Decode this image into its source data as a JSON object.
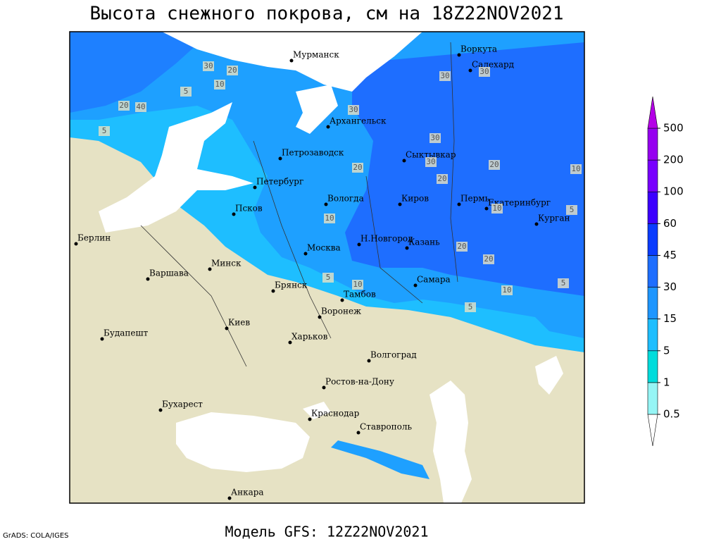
{
  "header": {
    "title": "Высота снежного покрова, см на 18Z22NOV2021"
  },
  "footer": {
    "model": "Модель GFS: 12Z22NOV2021",
    "credit": "GrADS: COLA/IGES"
  },
  "map": {
    "cities": [
      "Мурманск",
      "Воркута",
      "Салехард",
      "Архангельск",
      "Петрозаводск",
      "Сыктывкар",
      "Петербург",
      "Вологда",
      "Киров",
      "Пермь",
      "Екатеринбург",
      "Курган",
      "Псков",
      "Берлин",
      "Н.Новгород",
      "Москва",
      "Казань",
      "Варшава",
      "Минск",
      "Самара",
      "Брянск",
      "Тамбов",
      "Киев",
      "Воронеж",
      "Будапешт",
      "Харьков",
      "Волгоград",
      "Ростов-на-Дону",
      "Бухарест",
      "Краснодар",
      "Ставрополь",
      "Анкара"
    ],
    "contour_labels": [
      30,
      20,
      10,
      5,
      20,
      40,
      5,
      30,
      30,
      30,
      30,
      20,
      30,
      20,
      20,
      10,
      10,
      5,
      10,
      10,
      20,
      20,
      10,
      5,
      5,
      5
    ]
  },
  "legend": {
    "levels": [
      0.5,
      1,
      5,
      15,
      30,
      45,
      60,
      100,
      200,
      500
    ],
    "colors": [
      "#ffffff",
      "#96f5f5",
      "#00dcdc",
      "#1ebeff",
      "#1e96ff",
      "#1e6eff",
      "#0a3cff",
      "#3c00ff",
      "#7800ff",
      "#9600f0",
      "#b400e6"
    ]
  }
}
